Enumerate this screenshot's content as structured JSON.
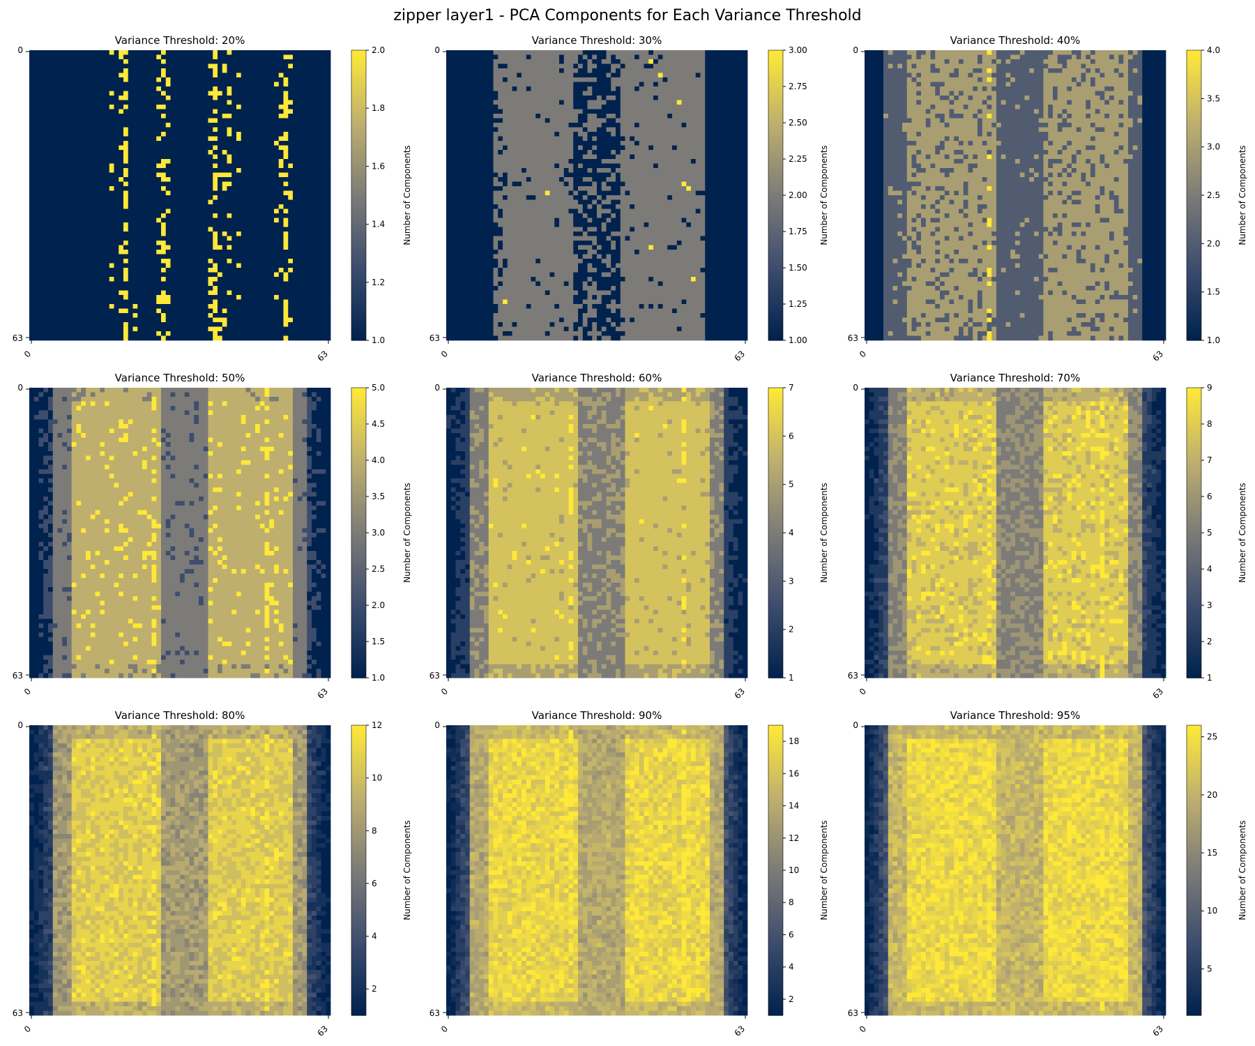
{
  "figure_title": "zipper layer1 - PCA Components for Each Variance Threshold",
  "colors": {
    "colormap": "cividis",
    "cmap_low": "#00224e",
    "cmap_mid": "#7c7b78",
    "cmap_high": "#fee838"
  },
  "chart_data": [
    {
      "type": "heatmap",
      "title": "Variance Threshold: 20%",
      "xticks": [
        "0",
        "63"
      ],
      "yticks": [
        "0",
        "63"
      ],
      "grid_size": 64,
      "colorbar_label": "Number of Components",
      "vmin": 1,
      "vmax": 2,
      "colorbar_ticks": [
        "1.0",
        "1.2",
        "1.4",
        "1.6",
        "1.8",
        "2.0"
      ],
      "pattern": "mostly 1; sparse vertical streaks of 2 near columns 17-18, 27, 38-44, 55"
    },
    {
      "type": "heatmap",
      "title": "Variance Threshold: 30%",
      "xticks": [
        "0",
        "63"
      ],
      "yticks": [
        "0",
        "63"
      ],
      "grid_size": 64,
      "colorbar_label": "Number of Components",
      "vmin": 1,
      "vmax": 3,
      "colorbar_ticks": [
        "1.00",
        "1.25",
        "1.50",
        "1.75",
        "2.00",
        "2.25",
        "2.50",
        "2.75",
        "3.00"
      ],
      "pattern": "1 at left and right edges; band of 2 from columns 10-54 with 1-valued streaks; isolated 3s"
    },
    {
      "type": "heatmap",
      "title": "Variance Threshold: 40%",
      "xticks": [
        "0",
        "63"
      ],
      "yticks": [
        "0",
        "63"
      ],
      "grid_size": 64,
      "colorbar_label": "Number of Components",
      "vmin": 1,
      "vmax": 4,
      "colorbar_ticks": [
        "1.0",
        "1.5",
        "2.0",
        "2.5",
        "3.0",
        "3.5",
        "4.0"
      ],
      "pattern": "1 at edges; 2 bands; 3 inner bands at columns 9-27 and 38-55; central 2 band; isolated 4s"
    },
    {
      "type": "heatmap",
      "title": "Variance Threshold: 50%",
      "xticks": [
        "0",
        "63"
      ],
      "yticks": [
        "0",
        "63"
      ],
      "grid_size": 64,
      "colorbar_label": "Number of Components",
      "vmin": 1,
      "vmax": 5,
      "colorbar_ticks": [
        "1.0",
        "1.5",
        "2.0",
        "2.5",
        "3.0",
        "3.5",
        "4.0",
        "4.5",
        "5.0"
      ],
      "pattern": "edges 1-2; inner bands of 4 at columns 9-26 and 37-55; center 3; bright column of 5 near 26"
    },
    {
      "type": "heatmap",
      "title": "Variance Threshold: 60%",
      "xticks": [
        "0",
        "63"
      ],
      "yticks": [
        "0",
        "63"
      ],
      "grid_size": 64,
      "colorbar_label": "Number of Components",
      "vmin": 1,
      "vmax": 7,
      "colorbar_ticks": [
        "1",
        "2",
        "3",
        "4",
        "5",
        "6",
        "7"
      ],
      "pattern": "edges 1-2; inner bands around 5-6 at columns 9-27 and 37-55; center 3-4"
    },
    {
      "type": "heatmap",
      "title": "Variance Threshold: 70%",
      "xticks": [
        "0",
        "63"
      ],
      "yticks": [
        "0",
        "63"
      ],
      "grid_size": 64,
      "colorbar_label": "Number of Components",
      "vmin": 1,
      "vmax": 9,
      "colorbar_ticks": [
        "1",
        "2",
        "3",
        "4",
        "5",
        "6",
        "7",
        "8",
        "9"
      ],
      "pattern": "edges 1-3; inner bands around 7-8 at columns 9-27 and 37-55; center 4-5"
    },
    {
      "type": "heatmap",
      "title": "Variance Threshold: 80%",
      "xticks": [
        "0",
        "63"
      ],
      "yticks": [
        "0",
        "63"
      ],
      "grid_size": 64,
      "colorbar_label": "Number of Components",
      "vmin": 1,
      "vmax": 12,
      "colorbar_ticks": [
        "2",
        "4",
        "6",
        "8",
        "10",
        "12"
      ],
      "pattern": "edges 1-3; inner bands around 10-11 at columns 8-28 and 37-56; center 7-8"
    },
    {
      "type": "heatmap",
      "title": "Variance Threshold: 90%",
      "xticks": [
        "0",
        "63"
      ],
      "yticks": [
        "0",
        "63"
      ],
      "grid_size": 64,
      "colorbar_label": "Number of Components",
      "vmin": 1,
      "vmax": 19,
      "colorbar_ticks": [
        "2",
        "4",
        "6",
        "8",
        "10",
        "12",
        "14",
        "16",
        "18"
      ],
      "pattern": "edges 1-5; inner bands around 16-18 at columns 7-29 and 36-56; center 13-14"
    },
    {
      "type": "heatmap",
      "title": "Variance Threshold: 95%",
      "xticks": [
        "0",
        "63"
      ],
      "yticks": [
        "0",
        "63"
      ],
      "grid_size": 64,
      "colorbar_label": "Number of Components",
      "vmin": 1,
      "vmax": 26,
      "colorbar_ticks": [
        "5",
        "10",
        "15",
        "20",
        "25"
      ],
      "pattern": "edges 1-8; inner bands around 22-25 at columns 6-29 and 36-57; center 19-21"
    }
  ]
}
